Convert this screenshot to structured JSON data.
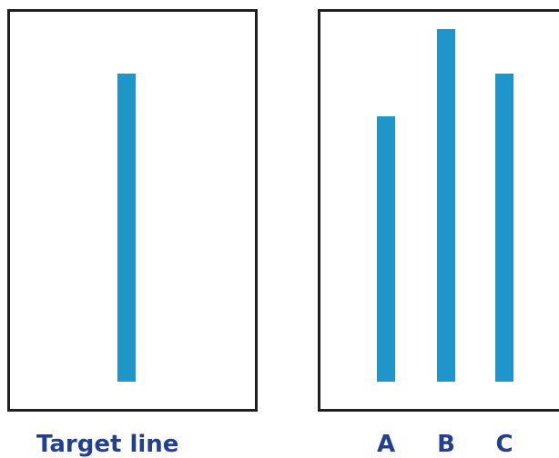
{
  "colors": {
    "line": "#1f95c9",
    "label": "#23408f",
    "border": "#231f20"
  },
  "target": {
    "label": "Target line",
    "length": 339
  },
  "choices": [
    {
      "label": "A",
      "length": 292
    },
    {
      "label": "B",
      "length": 388
    },
    {
      "label": "C",
      "length": 339
    }
  ]
}
